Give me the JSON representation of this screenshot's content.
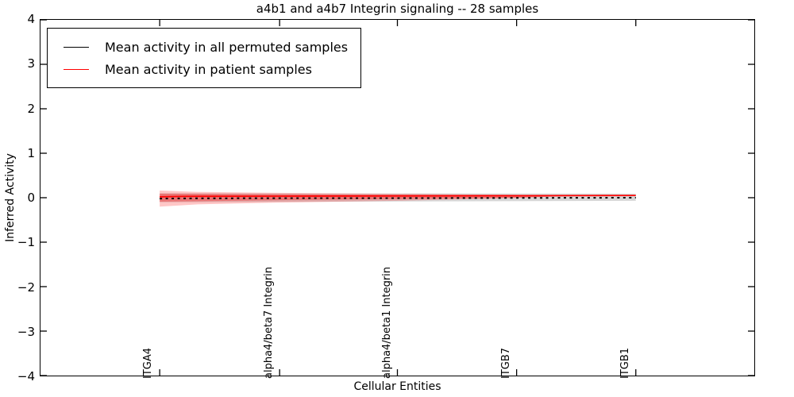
{
  "chart_data": {
    "type": "line",
    "title": "a4b1 and a4b7 Integrin signaling -- 28 samples",
    "xlabel": "Cellular Entities",
    "ylabel": "Inferred Activity",
    "ylim": [
      -4,
      4
    ],
    "yticks": [
      4,
      3,
      2,
      1,
      0,
      -1,
      -2,
      -3,
      -4
    ],
    "grid": false,
    "legend_position": "upper left",
    "background": "#ffffff",
    "frame_color": "#000000",
    "xticks": {
      "labels": [
        "ITGA4",
        "alpha4/beta7 Integrin",
        "alpha4/beta1 Integrin",
        "ITGB7",
        "ITGB1"
      ],
      "axis_fractions": [
        0.167,
        0.335,
        0.5,
        0.667,
        0.834
      ],
      "rotation_degrees": 90
    },
    "data_span_axis_fractions": [
      0.167,
      0.834
    ],
    "series": [
      {
        "name": "Mean activity in all permuted samples",
        "color": "#000000",
        "style": "dashed",
        "t": [
          0,
          0.05,
          0.25,
          0.5,
          0.75,
          1
        ],
        "y": [
          -0.02,
          -0.015,
          -0.01,
          -0.01,
          -0.005,
          0.0
        ]
      },
      {
        "name": "Mean activity in patient samples",
        "color": "#ff0000",
        "style": "solid",
        "t": [
          0,
          0.05,
          0.25,
          0.5,
          0.75,
          1
        ],
        "y": [
          0.02,
          0.03,
          0.035,
          0.04,
          0.045,
          0.05
        ]
      }
    ],
    "bands": [
      {
        "name": "permuted-samples-std-band",
        "color": "rgba(0,0,0,0.16)",
        "t": [
          0,
          1
        ],
        "upper": [
          0.1,
          0.09
        ],
        "lower": [
          -0.1,
          -0.07
        ]
      },
      {
        "name": "patient-samples-std-band-outer",
        "color": "rgba(255,0,0,0.22)",
        "t": [
          0,
          0.08,
          0.25,
          0.5,
          0.7,
          0.85
        ],
        "upper": [
          0.16,
          0.13,
          0.11,
          0.09,
          0.07,
          0.05
        ],
        "lower": [
          -0.2,
          -0.15,
          -0.11,
          -0.07,
          -0.02,
          0.04
        ]
      },
      {
        "name": "patient-samples-std-band-inner",
        "color": "rgba(255,0,0,0.30)",
        "t": [
          0,
          0.25,
          0.5,
          0.75,
          0.88
        ],
        "upper": [
          0.09,
          0.075,
          0.065,
          0.06,
          0.05
        ],
        "lower": [
          -0.09,
          -0.055,
          -0.03,
          -0.005,
          0.045
        ]
      }
    ]
  }
}
